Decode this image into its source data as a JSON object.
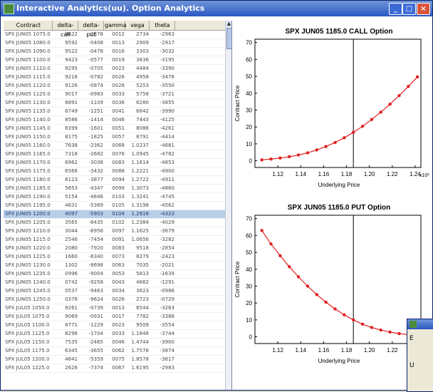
{
  "window": {
    "title": "Interactive Analytics(uu). Option Analytics",
    "min": "_",
    "max": "□",
    "close": "×"
  },
  "table": {
    "columns": [
      "Contract",
      "delta-call",
      "delta-put",
      "gamma",
      "vega",
      "theta"
    ],
    "selected_row": 21,
    "rows": [
      [
        "SPX JUN05 1075.0",
        "9622",
        "-0378",
        "0012",
        "2734",
        "-2963"
      ],
      [
        "SPX JUN05 1080.0",
        "9592",
        "-0408",
        "0013",
        "2909",
        "-2917"
      ],
      [
        "SPX JUN05 1090.0",
        "9522",
        "-0478",
        "0016",
        "3303",
        "-3032"
      ],
      [
        "SPX JUN05 1100.0",
        "9423",
        "-0577",
        "0019",
        "3836",
        "-3195"
      ],
      [
        "SPX JUN05 1110.0",
        "9295",
        "-0705",
        "0023",
        "4484",
        "-3390"
      ],
      [
        "SPX JUN05 1115.0",
        "9218",
        "-0782",
        "0026",
        "4958",
        "-3476"
      ],
      [
        "SPX JUN05 1120.0",
        "9126",
        "-0874",
        "0028",
        "5253",
        "-3550"
      ],
      [
        "SPX JUN05 1125.0",
        "9017",
        "-0983",
        "0033",
        "5758",
        "-3721"
      ],
      [
        "SPX JUN05 1130.0",
        "8891",
        "-1109",
        "0036",
        "6280",
        "-3855"
      ],
      [
        "SPX JUN05 1135.0",
        "8749",
        "-1251",
        "0041",
        "6842",
        "-3990"
      ],
      [
        "SPX JUN05 1140.0",
        "8586",
        "-1414",
        "0046",
        "7443",
        "-4125"
      ],
      [
        "SPX JUN05 1145.0",
        "8399",
        "-1601",
        "0051",
        "8086",
        "-4261"
      ],
      [
        "SPX JUN05 1150.0",
        "8175",
        "-1825",
        "0057",
        "8791",
        "-4414"
      ],
      [
        "SPX JUN05 1160.0",
        "7638",
        "-2362",
        "0068",
        "1.0237",
        "-4681"
      ],
      [
        "SPX JUN05 1165.0",
        "7318",
        "-2682",
        "0076",
        "1.0945",
        "-4782"
      ],
      [
        "SPX JUN05 1170.0",
        "6962",
        "-3038",
        "0083",
        "1.1614",
        "-4853"
      ],
      [
        "SPX JUN05 1175.0",
        "6568",
        "-3432",
        "0088",
        "1.2221",
        "-4900"
      ],
      [
        "SPX JUN05 1180.0",
        "6123",
        "-3877",
        "0094",
        "1.2722",
        "-4911"
      ],
      [
        "SPX JUN05 1185.0",
        "5653",
        "-4347",
        "0099",
        "1.3073",
        "-4860"
      ],
      [
        "SPX JUN05 1190.0",
        "5154",
        "-4846",
        "0103",
        "1.3241",
        "-4745"
      ],
      [
        "SPX JUN05 1195.0",
        "4631",
        "-5369",
        "0105",
        "1.3198",
        "-4562"
      ],
      [
        "SPX JUN05 1200.0",
        "4097",
        "-5903",
        "0104",
        "1.2918",
        "-4323"
      ],
      [
        "SPX JUN05 1205.0",
        "3565",
        "-6435",
        "0102",
        "1.2384",
        "-4029"
      ],
      [
        "SPX JUN05 1210.0",
        "3044",
        "-6956",
        "0097",
        "1.1625",
        "-3679"
      ],
      [
        "SPX JUN05 1215.0",
        "2546",
        "-7454",
        "0091",
        "1.0656",
        "-3282"
      ],
      [
        "SPX JUN05 1220.0",
        "2080",
        "-7920",
        "0083",
        "9518",
        "-2854"
      ],
      [
        "SPX JUN05 1225.0",
        "1660",
        "-8340",
        "0073",
        "8279",
        "-2423"
      ],
      [
        "SPX JUN05 1230.0",
        "1302",
        "-8698",
        "0063",
        "7035",
        "-2021"
      ],
      [
        "SPX JUN05 1235.0",
        "0996",
        "-9004",
        "0053",
        "5813",
        "-1639"
      ],
      [
        "SPX JUN05 1240.0",
        "0742",
        "-9258",
        "0043",
        "4662",
        "-1291"
      ],
      [
        "SPX JUN05 1245.0",
        "0537",
        "-9463",
        "0034",
        "3623",
        "-0986"
      ],
      [
        "SPX JUN05 1250.0",
        "0376",
        "-9624",
        "0026",
        "2723",
        "-0729"
      ],
      [
        "SPX JUL05 1050.0",
        "9261",
        "-0739",
        "0013",
        "6544",
        "-3263"
      ],
      [
        "SPX JUL05 1075.0",
        "9069",
        "-0931",
        "0017",
        "7782",
        "-3388"
      ],
      [
        "SPX JUL05 1100.0",
        "8771",
        "-1229",
        "0023",
        "9509",
        "-3554"
      ],
      [
        "SPX JUL05 1125.0",
        "8296",
        "-1704",
        "0033",
        "1.1848",
        "-3744"
      ],
      [
        "SPX JUL05 1150.0",
        "7535",
        "-2465",
        "0046",
        "1.4744",
        "-3900"
      ],
      [
        "SPX JUL05 1175.0",
        "6345",
        "-3655",
        "0062",
        "1.7578",
        "-3874"
      ],
      [
        "SPX JUL05 1200.0",
        "4641",
        "-5359",
        "0075",
        "1.8578",
        "-3617"
      ],
      [
        "SPX JUL05 1225.0",
        "2626",
        "-7374",
        "0067",
        "1.6195",
        "-2983"
      ]
    ]
  },
  "scroll_up_label": "▲",
  "charts": {
    "call": {
      "title": "SPX JUN05 1185.0 CALL Option",
      "xlabel": "Underlying Price",
      "ylabel": "Contract Price",
      "exp": "x10³",
      "xticks": [
        "1.12",
        "1.14",
        "1.16",
        "1.18",
        "1.20",
        "1.22",
        "1.24"
      ],
      "yticks": [
        "0",
        "10",
        "20",
        "30",
        "40",
        "50",
        "60",
        "70"
      ]
    },
    "put": {
      "title": "SPX JUN05 1185.0 PUT Option",
      "xlabel": "Underlying Price",
      "ylabel": "Contract Price",
      "exp": "x10³",
      "xticks": [
        "1.12",
        "1.14",
        "1.16",
        "1.18",
        "1.20",
        "1.22",
        "1.24"
      ],
      "yticks": [
        "0",
        "10",
        "20",
        "30",
        "40",
        "50",
        "60",
        "70"
      ]
    }
  },
  "chart_data": [
    {
      "type": "line",
      "title": "SPX JUN05 1185.0 CALL Option",
      "xlabel": "Underlying Price",
      "ylabel": "Contract Price",
      "x": [
        1.106,
        1.114,
        1.122,
        1.13,
        1.138,
        1.146,
        1.154,
        1.162,
        1.17,
        1.178,
        1.186,
        1.194,
        1.202,
        1.21,
        1.218,
        1.226,
        1.234,
        1.242
      ],
      "series": [
        {
          "values": [
            0.5,
            1.0,
            1.6,
            2.4,
            3.4,
            4.7,
            6.4,
            8.4,
            10.8,
            13.6,
            16.8,
            20.4,
            24.4,
            28.8,
            33.5,
            38.6,
            44.0,
            49.7
          ]
        }
      ],
      "xlim": [
        1.1,
        1.245
      ],
      "ylim": [
        -4,
        72
      ],
      "reference_line_x": 1.186,
      "grid": false
    },
    {
      "type": "line",
      "title": "SPX JUN05 1185.0 PUT Option",
      "xlabel": "Underlying Price",
      "ylabel": "Contract Price",
      "x": [
        1.106,
        1.114,
        1.122,
        1.13,
        1.138,
        1.146,
        1.154,
        1.162,
        1.17,
        1.178,
        1.186,
        1.194,
        1.202,
        1.21,
        1.218,
        1.226,
        1.234,
        1.242
      ],
      "series": [
        {
          "values": [
            63,
            55,
            48,
            41.5,
            35.5,
            30,
            25,
            20.5,
            16.5,
            13,
            10,
            7.5,
            5.5,
            4,
            2.8,
            1.9,
            1.2,
            0.8
          ]
        }
      ],
      "xlim": [
        1.1,
        1.245
      ],
      "ylim": [
        -4,
        72
      ],
      "reference_line_x": 1.186,
      "grid": false
    }
  ],
  "dialog": {
    "line1": "E",
    "line2": "U"
  }
}
